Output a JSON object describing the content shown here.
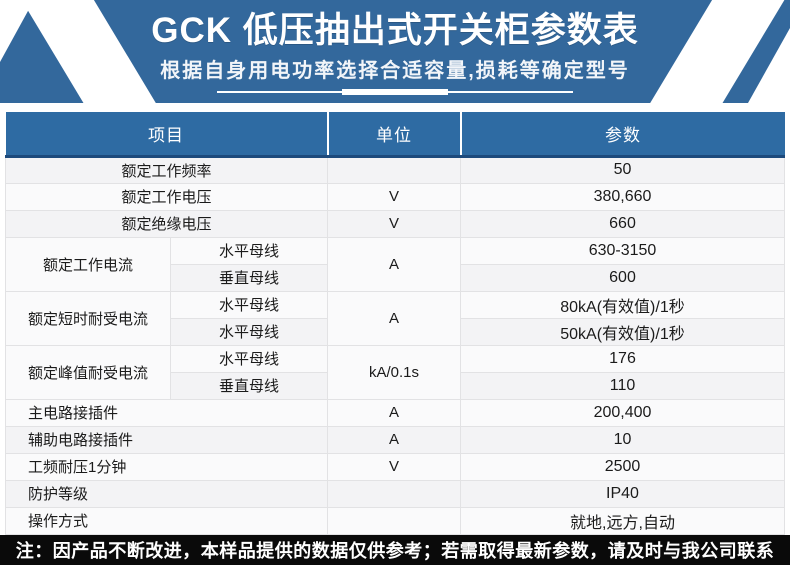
{
  "banner": {
    "title": "GCK 低压抽出式开关柜参数表",
    "subtitle": "根据自身用电功率选择合适容量,损耗等确定型号"
  },
  "colors": {
    "banner_blue": "#33689c",
    "header_blue": "#2e6ba3",
    "header_border_dark": "#1d4a7c",
    "row_stripe_gray": "#f3f3f5",
    "footer_black": "#0a0a0a"
  },
  "table": {
    "headers": {
      "item": "项目",
      "unit": "单位",
      "value": "参数"
    },
    "rows": [
      {
        "item": "额定工作频率",
        "unit": "",
        "value": "50"
      },
      {
        "item": "额定工作电压",
        "unit": "V",
        "value": "380,660"
      },
      {
        "item": "额定绝缘电压",
        "unit": "V",
        "value": "660"
      },
      {
        "item": "额定工作电流",
        "sub": "水平母线",
        "unit": "A",
        "value": "630-3150"
      },
      {
        "sub": "垂直母线",
        "value": "600"
      },
      {
        "item": "额定短时耐受电流",
        "sub": "水平母线",
        "unit": "A",
        "value": "80kA(有效值)/1秒"
      },
      {
        "sub": "水平母线",
        "value": "50kA(有效值)/1秒"
      },
      {
        "item": "额定峰值耐受电流",
        "sub": "水平母线",
        "unit": "kA/0.1s",
        "value": "176"
      },
      {
        "sub": "垂直母线",
        "value": "110"
      },
      {
        "item": "主电路接插件",
        "unit": "A",
        "value": "200,400"
      },
      {
        "item": "辅助电路接插件",
        "unit": "A",
        "value": "10"
      },
      {
        "item": "工频耐压1分钟",
        "unit": "V",
        "value": "2500"
      },
      {
        "item": "防护等级",
        "unit": "",
        "value": "IP40"
      },
      {
        "item": "操作方式",
        "unit": "",
        "value": "就地,远方,自动"
      }
    ]
  },
  "footer": {
    "note": "注：因产品不断改进，本样品提供的数据仅供参考；若需取得最新参数，请及时与我公司联系"
  }
}
